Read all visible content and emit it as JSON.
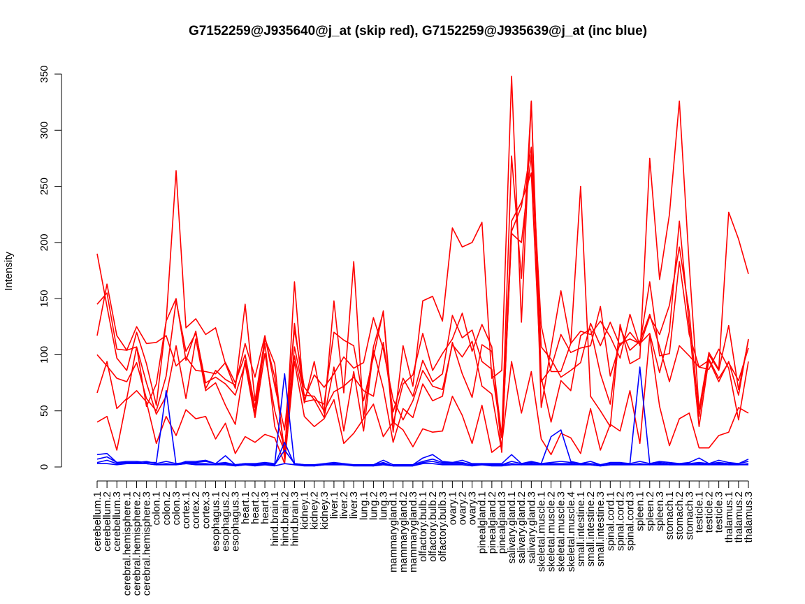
{
  "chart_data": {
    "type": "line",
    "title": "G7152259@J935640@j_at (skip red), G7152259@J935639@j_at (inc blue)",
    "xlabel": "",
    "ylabel": "Intensity",
    "ylim": [
      0,
      350
    ],
    "yticks": [
      0,
      50,
      100,
      150,
      200,
      250,
      300,
      350
    ],
    "categories": [
      "cerebellum.1",
      "cerebellum.2",
      "cerebellum.3",
      "cerebral.hemisphere.1",
      "cerebral.hemisphere.2",
      "cerebral.hemisphere.3",
      "colon.1",
      "colon.2",
      "colon.3",
      "cortex.1",
      "cortex.2",
      "cortex.3",
      "esophagus.1",
      "esophagus.2",
      "esophagus.3",
      "heart.1",
      "heart.2",
      "heart.3",
      "hind.brain.1",
      "hind.brain.2",
      "hind.brain.3",
      "kidney.1",
      "kidney.2",
      "kidney.3",
      "liver.1",
      "liver.2",
      "liver.3",
      "lung.1",
      "lung.2",
      "lung.3",
      "mammarygland.1",
      "mammarygland.2",
      "mammarygland.3",
      "olfactory.bulb.1",
      "olfactory.bulb.2",
      "olfactory.bulb.3",
      "ovary.1",
      "ovary.2",
      "ovary.3",
      "pinealgland.1",
      "pinealgland.2",
      "pinealgland.3",
      "salivary.gland.1",
      "salivary.gland.2",
      "salivary.gland.3",
      "skeletal.muscle.1",
      "skeletal.muscle.2",
      "skeletal.muscle.3",
      "skeletal.muscle.4",
      "small.intestine.1",
      "small.intestine.2",
      "small.intestine.3",
      "spinal.cord.1",
      "spinal.cord.2",
      "spinal.cord.3",
      "spleen.1",
      "spleen.2",
      "spleen.3",
      "stomach.1",
      "stomach.2",
      "stomach.3",
      "testicle.1",
      "testicle.2",
      "testicle.3",
      "thalamus.1",
      "thalamus.2",
      "thalamus.3"
    ],
    "series": [
      {
        "color": "#ff0000",
        "values": [
          190,
          143,
          97,
          86,
          120,
          92,
          55,
          130,
          264,
          124,
          132,
          118,
          124,
          92,
          70,
          145,
          59,
          114,
          92,
          7,
          165,
          57,
          94,
          48,
          148,
          66,
          183,
          44,
          107,
          138,
          31,
          108,
          72,
          148,
          152,
          130,
          213,
          196,
          200,
          218,
          79,
          86,
          348,
          129,
          326,
          53,
          106,
          157,
          110,
          250,
          63,
          50,
          36,
          127,
          92,
          97,
          275,
          167,
          225,
          326,
          180,
          51,
          102,
          87,
          227,
          203,
          172
        ]
      },
      {
        "color": "#ff0000",
        "values": [
          117,
          163,
          117,
          104,
          107,
          54,
          74,
          130,
          150,
          95,
          121,
          70,
          86,
          78,
          73,
          110,
          80,
          117,
          72,
          33,
          122,
          71,
          60,
          56,
          120,
          113,
          108,
          59,
          98,
          139,
          39,
          74,
          82,
          119,
          86,
          101,
          114,
          137,
          103,
          127,
          107,
          13,
          210,
          232,
          285,
          126,
          85,
          85,
          110,
          121,
          118,
          130,
          116,
          97,
          136,
          108,
          134,
          118,
          144,
          196,
          138,
          45,
          100,
          86,
          126,
          69,
          113
        ]
      },
      {
        "color": "#ff0000",
        "values": [
          145,
          155,
          105,
          104,
          125,
          110,
          111,
          117,
          90,
          98,
          86,
          85,
          83,
          93,
          75,
          100,
          53,
          115,
          80,
          14,
          128,
          60,
          82,
          71,
          83,
          98,
          88,
          93,
          133,
          105,
          60,
          42,
          59,
          86,
          72,
          69,
          109,
          98,
          112,
          72,
          65,
          14,
          208,
          200,
          278,
          107,
          96,
          80,
          86,
          93,
          128,
          108,
          129,
          108,
          120,
          109,
          165,
          99,
          101,
          183,
          118,
          89,
          95,
          76,
          94,
          64,
          114
        ]
      },
      {
        "color": "#ff0000",
        "values": [
          100,
          90,
          79,
          76,
          93,
          61,
          50,
          81,
          148,
          103,
          119,
          75,
          80,
          74,
          64,
          92,
          44,
          101,
          50,
          16,
          107,
          64,
          63,
          50,
          67,
          72,
          80,
          68,
          63,
          111,
          49,
          79,
          63,
          95,
          76,
          83,
          135,
          115,
          122,
          94,
          87,
          26,
          219,
          236,
          262,
          76,
          88,
          118,
          102,
          106,
          108,
          143,
          81,
          110,
          114,
          110,
          119,
          84,
          121,
          219,
          126,
          36,
          96,
          79,
          93,
          77,
          106
        ]
      },
      {
        "color": "#ff0000",
        "values": [
          66,
          94,
          52,
          61,
          107,
          75,
          47,
          63,
          108,
          61,
          114,
          68,
          75,
          55,
          38,
          95,
          48,
          110,
          36,
          14,
          99,
          58,
          60,
          44,
          89,
          32,
          85,
          32,
          104,
          70,
          22,
          52,
          44,
          74,
          59,
          63,
          111,
          83,
          62,
          109,
          103,
          27,
          277,
          168,
          326,
          80,
          40,
          77,
          68,
          117,
          123,
          83,
          56,
          124,
          104,
          112,
          136,
          107,
          76,
          108,
          99,
          89,
          87,
          105,
          88,
          42,
          94
        ]
      },
      {
        "color": "#ff0000",
        "values": [
          40,
          45,
          15,
          60,
          68,
          58,
          21,
          45,
          28,
          51,
          43,
          45,
          25,
          39,
          12,
          27,
          22,
          29,
          26,
          3,
          94,
          45,
          36,
          43,
          60,
          21,
          30,
          43,
          56,
          27,
          40,
          33,
          18,
          34,
          31,
          32,
          63,
          46,
          21,
          55,
          13,
          20,
          94,
          48,
          85,
          25,
          11,
          30,
          26,
          12,
          52,
          15,
          38,
          32,
          68,
          21,
          117,
          54,
          19,
          43,
          48,
          17,
          17,
          28,
          31,
          53,
          48
        ]
      },
      {
        "color": "#0000ff",
        "values": [
          11,
          12,
          4,
          5,
          5,
          4,
          4,
          68,
          2,
          5,
          5,
          6,
          3,
          10,
          2,
          3,
          3,
          4,
          3,
          83,
          3,
          2,
          2,
          3,
          4,
          3,
          2,
          2,
          2,
          6,
          2,
          2,
          2,
          8,
          11,
          5,
          4,
          6,
          3,
          3,
          3,
          3,
          11,
          3,
          5,
          3,
          27,
          33,
          5,
          3,
          5,
          2,
          4,
          4,
          3,
          89,
          3,
          5,
          4,
          3,
          4,
          8,
          3,
          6,
          4,
          3,
          7
        ]
      },
      {
        "color": "#0000ff",
        "values": [
          7,
          9,
          4,
          4,
          4,
          5,
          3,
          5,
          3,
          4,
          4,
          5,
          3,
          4,
          2,
          3,
          2,
          3,
          2,
          15,
          3,
          2,
          2,
          2,
          3,
          2,
          2,
          2,
          2,
          4,
          1,
          2,
          2,
          5,
          7,
          4,
          4,
          4,
          2,
          3,
          2,
          2,
          5,
          3,
          4,
          3,
          4,
          5,
          4,
          3,
          3,
          2,
          3,
          3,
          3,
          5,
          3,
          4,
          3,
          3,
          3,
          4,
          3,
          4,
          3,
          3,
          5
        ]
      },
      {
        "color": "#0000ff",
        "values": [
          4,
          6,
          3,
          3,
          4,
          3,
          2,
          3,
          2,
          3,
          3,
          3,
          2,
          3,
          1,
          2,
          2,
          2,
          2,
          22,
          2,
          2,
          1,
          2,
          2,
          2,
          2,
          2,
          1,
          3,
          1,
          1,
          1,
          4,
          5,
          3,
          3,
          3,
          2,
          2,
          2,
          2,
          3,
          2,
          3,
          2,
          3,
          3,
          3,
          2,
          2,
          1,
          2,
          2,
          2,
          3,
          2,
          3,
          2,
          2,
          2,
          3,
          2,
          3,
          2,
          2,
          3
        ]
      },
      {
        "color": "#0000ff",
        "values": [
          3,
          3,
          2,
          3,
          3,
          3,
          2,
          2,
          2,
          3,
          2,
          2,
          2,
          2,
          1,
          2,
          1,
          2,
          1,
          3,
          2,
          1,
          1,
          2,
          2,
          2,
          1,
          1,
          1,
          2,
          1,
          1,
          1,
          3,
          3,
          2,
          2,
          2,
          1,
          2,
          1,
          1,
          2,
          2,
          2,
          2,
          2,
          2,
          2,
          2,
          2,
          1,
          2,
          2,
          2,
          2,
          2,
          2,
          2,
          2,
          2,
          2,
          2,
          2,
          2,
          2,
          2
        ]
      }
    ]
  }
}
